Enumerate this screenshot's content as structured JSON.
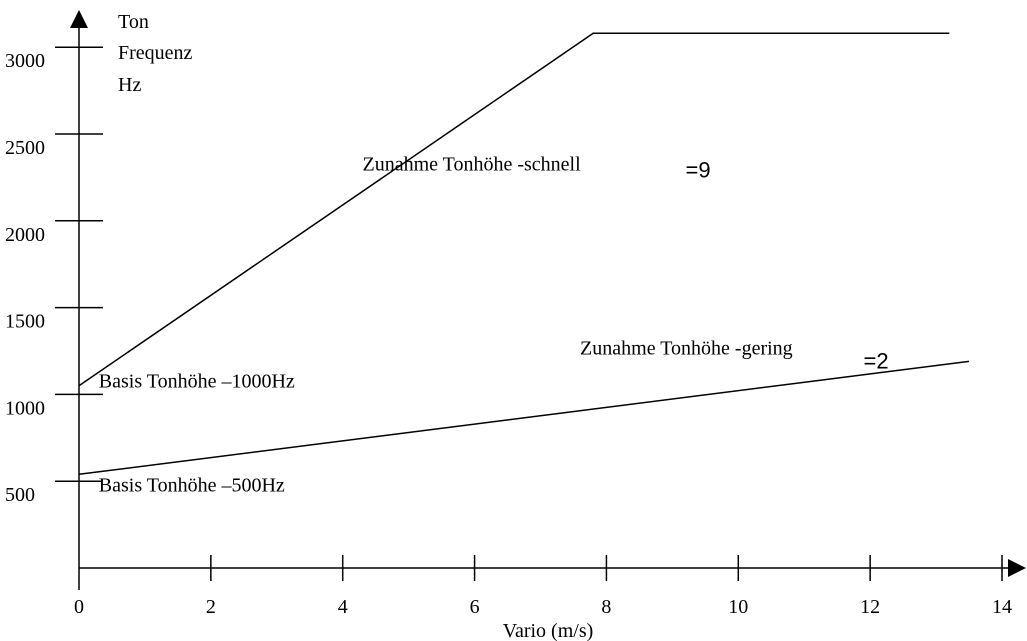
{
  "chart_data": {
    "type": "line",
    "title": "",
    "xlabel": "Vario (m/s)",
    "ylabel_lines": [
      "Ton",
      "Frequenz",
      "Hz"
    ],
    "xlim": [
      0,
      14
    ],
    "ylim": [
      0,
      3000
    ],
    "x_ticks": [
      0,
      2,
      4,
      6,
      8,
      10,
      12,
      14
    ],
    "y_ticks": [
      500,
      1000,
      1500,
      2000,
      2500,
      3000
    ],
    "grid": false,
    "series": [
      {
        "x": [
          0,
          7.8,
          13.2
        ],
        "y": [
          1050,
          3080,
          3080
        ]
      },
      {
        "x": [
          0,
          13.5
        ],
        "y": [
          540,
          1190
        ]
      }
    ],
    "annotations": [
      {
        "text": "Zunahme Tonhöhe -schnell",
        "value": "=9",
        "x": 4.3,
        "y": 2290,
        "vx": 9.2,
        "vy": 2250
      },
      {
        "text": "Zunahme Tonhöhe -gering",
        "value": "=2",
        "x": 7.6,
        "y": 1230,
        "vx": 11.9,
        "vy": 1150
      },
      {
        "text": "Basis Tonhöhe –1000Hz",
        "x": 0.3,
        "y": 1040
      },
      {
        "text": "Basis Tonhöhe –500Hz",
        "x": 0.3,
        "y": 440
      }
    ]
  }
}
